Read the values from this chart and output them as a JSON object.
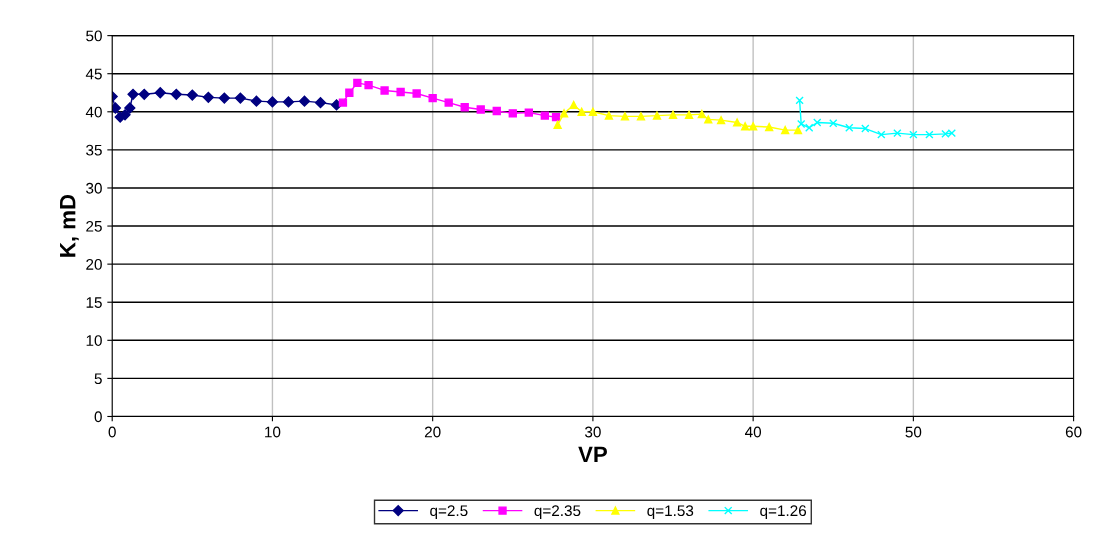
{
  "chart_data": {
    "type": "line",
    "xlabel": "VP",
    "ylabel": "K, mD",
    "xlim": [
      0,
      60
    ],
    "ylim": [
      0,
      50
    ],
    "xticks": [
      0,
      10,
      20,
      30,
      40,
      50,
      60
    ],
    "yticks": [
      0,
      5,
      10,
      15,
      20,
      25,
      30,
      35,
      40,
      45,
      50
    ],
    "grid": true,
    "legend": "bottom",
    "series": [
      {
        "name": "q=2.5",
        "color": "#000080",
        "marker": "diamond",
        "x": [
          0,
          0.2,
          0.5,
          0.8,
          1.1,
          1.3,
          2,
          3,
          4,
          5,
          6,
          7,
          8,
          9,
          10,
          11,
          12,
          13,
          14
        ],
        "values": [
          42,
          40.5,
          39.3,
          39.6,
          40.5,
          42.3,
          42.3,
          42.5,
          42.3,
          42.2,
          41.9,
          41.8,
          41.8,
          41.4,
          41.3,
          41.3,
          41.4,
          41.2,
          40.9
        ]
      },
      {
        "name": "q=2.35",
        "color": "#ff00ff",
        "marker": "square",
        "x": [
          14.4,
          14.8,
          15.3,
          16,
          17,
          18,
          19,
          20,
          21,
          22,
          23,
          24,
          25,
          26,
          27,
          27.7
        ],
        "values": [
          41.2,
          42.5,
          43.8,
          43.5,
          42.8,
          42.6,
          42.4,
          41.8,
          41.2,
          40.6,
          40.3,
          40.1,
          39.8,
          39.9,
          39.5,
          39.3
        ]
      },
      {
        "name": "q=1.53",
        "color": "#ffff00",
        "marker": "triangle",
        "x": [
          27.8,
          28.2,
          28.8,
          29.3,
          30,
          31,
          32,
          33,
          34,
          35,
          36,
          36.8,
          37.2,
          38,
          39,
          39.5,
          40,
          41,
          42,
          42.8
        ],
        "values": [
          38.3,
          39.8,
          40.9,
          40.0,
          40.0,
          39.5,
          39.4,
          39.4,
          39.5,
          39.6,
          39.6,
          39.7,
          39.0,
          38.9,
          38.6,
          38.1,
          38.1,
          38.0,
          37.6,
          37.6
        ]
      },
      {
        "name": "q=1.26",
        "color": "#00ffff",
        "marker": "cross",
        "x": [
          42.9,
          43,
          43.5,
          44,
          45,
          46,
          47,
          48,
          49,
          50,
          51,
          52,
          52.4
        ],
        "values": [
          41.5,
          38.4,
          37.9,
          38.6,
          38.5,
          37.9,
          37.8,
          37.0,
          37.2,
          37.0,
          37.0,
          37.1,
          37.2
        ]
      }
    ]
  }
}
